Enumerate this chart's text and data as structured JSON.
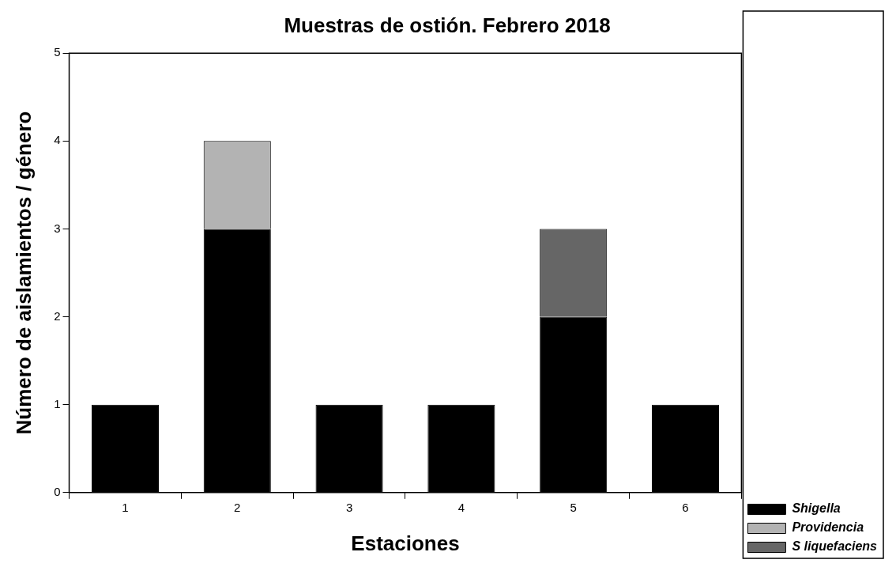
{
  "chart_data": {
    "type": "bar",
    "title": "Muestras de ostión. Febrero 2018",
    "xlabel": "Estaciones",
    "ylabel": "Número de aislamientos / género",
    "categories": [
      "1",
      "2",
      "3",
      "4",
      "5",
      "6"
    ],
    "series": [
      {
        "name": "Shigella",
        "color": "#000000",
        "values": [
          1,
          3,
          1,
          1,
          2,
          1
        ]
      },
      {
        "name": "Providencia",
        "color": "#b3b3b3",
        "values": [
          null,
          1,
          null,
          null,
          null,
          null
        ]
      },
      {
        "name": "S liquefaciens",
        "color": "#666666",
        "values": [
          null,
          null,
          null,
          null,
          1,
          null
        ]
      }
    ],
    "stacked": true,
    "ylim": [
      0,
      5
    ],
    "yticks": [
      0,
      1,
      2,
      3,
      4,
      5
    ],
    "grid": false,
    "legend": "bottom right"
  }
}
